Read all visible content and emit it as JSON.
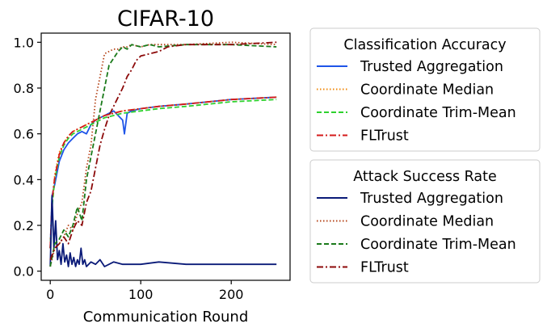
{
  "chart_data": {
    "type": "line",
    "title": "CIFAR-10",
    "xlabel": "Communication Round",
    "ylabel": "",
    "xlim": [
      -10,
      265
    ],
    "ylim": [
      -0.04,
      1.04
    ],
    "x_ticks": [
      0,
      100,
      200
    ],
    "y_ticks": [
      0.0,
      0.2,
      0.4,
      0.6,
      0.8,
      1.0
    ],
    "y_tick_labels": [
      "0.0",
      "0.2",
      "0.4",
      "0.6",
      "0.8",
      "1.0"
    ],
    "grid": false,
    "legend_placement": "outside-right",
    "legends": [
      {
        "title": "Classification Accuracy",
        "entries": [
          {
            "label": "Trusted Aggregation",
            "color": "#1f55e8",
            "dash": "solid"
          },
          {
            "label": "Coordinate Median",
            "color": "#f08a0c",
            "dash": "dotted"
          },
          {
            "label": "Coordinate Trim-Mean",
            "color": "#2ed12e",
            "dash": "dashed"
          },
          {
            "label": "FLTrust",
            "color": "#d41a1a",
            "dash": "dashdot"
          }
        ]
      },
      {
        "title": "Attack Success Rate",
        "entries": [
          {
            "label": "Trusted Aggregation",
            "color": "#0a1a78",
            "dash": "solid"
          },
          {
            "label": "Coordinate Median",
            "color": "#b5451a",
            "dash": "dotted"
          },
          {
            "label": "Coordinate Trim-Mean",
            "color": "#1a7a1a",
            "dash": "dashed"
          },
          {
            "label": "FLTrust",
            "color": "#8c0a0a",
            "dash": "dashdot"
          }
        ]
      }
    ],
    "series": [
      {
        "name": "Trusted Aggregation",
        "group": "Classification Accuracy",
        "color": "#1f55e8",
        "dash": "solid",
        "x": [
          0,
          2,
          5,
          10,
          15,
          20,
          25,
          30,
          35,
          40,
          45,
          50,
          55,
          60,
          65,
          70,
          75,
          80,
          82,
          85,
          90,
          100,
          120,
          150,
          200,
          250
        ],
        "y": [
          0.1,
          0.33,
          0.38,
          0.48,
          0.53,
          0.56,
          0.58,
          0.6,
          0.61,
          0.6,
          0.64,
          0.66,
          0.67,
          0.68,
          0.69,
          0.7,
          0.68,
          0.66,
          0.6,
          0.69,
          0.7,
          0.71,
          0.72,
          0.73,
          0.75,
          0.76
        ]
      },
      {
        "name": "Coordinate Median",
        "group": "Classification Accuracy",
        "color": "#f08a0c",
        "dash": "dotted",
        "x": [
          0,
          2,
          5,
          10,
          15,
          20,
          25,
          30,
          35,
          40,
          45,
          50,
          60,
          70,
          80,
          100,
          120,
          150,
          200,
          250
        ],
        "y": [
          0.1,
          0.3,
          0.42,
          0.52,
          0.56,
          0.59,
          0.61,
          0.62,
          0.63,
          0.64,
          0.65,
          0.66,
          0.68,
          0.69,
          0.7,
          0.71,
          0.72,
          0.73,
          0.75,
          0.76
        ]
      },
      {
        "name": "Coordinate Trim-Mean",
        "group": "Classification Accuracy",
        "color": "#2ed12e",
        "dash": "dashed",
        "x": [
          0,
          2,
          5,
          10,
          15,
          20,
          25,
          30,
          35,
          40,
          45,
          50,
          60,
          70,
          80,
          100,
          120,
          150,
          200,
          250
        ],
        "y": [
          0.1,
          0.28,
          0.4,
          0.5,
          0.55,
          0.58,
          0.6,
          0.61,
          0.62,
          0.63,
          0.64,
          0.65,
          0.67,
          0.68,
          0.69,
          0.7,
          0.71,
          0.72,
          0.74,
          0.75
        ]
      },
      {
        "name": "FLTrust",
        "group": "Classification Accuracy",
        "color": "#d41a1a",
        "dash": "dashdot",
        "x": [
          0,
          2,
          5,
          10,
          15,
          20,
          25,
          30,
          35,
          40,
          45,
          50,
          60,
          70,
          80,
          100,
          120,
          150,
          200,
          250
        ],
        "y": [
          0.1,
          0.31,
          0.41,
          0.51,
          0.56,
          0.59,
          0.61,
          0.62,
          0.63,
          0.64,
          0.65,
          0.66,
          0.68,
          0.69,
          0.7,
          0.71,
          0.72,
          0.73,
          0.75,
          0.76
        ]
      },
      {
        "name": "Trusted Aggregation",
        "group": "Attack Success Rate",
        "color": "#0a1a78",
        "dash": "solid",
        "x": [
          0,
          2,
          4,
          6,
          8,
          10,
          12,
          14,
          16,
          18,
          20,
          22,
          24,
          26,
          28,
          30,
          32,
          34,
          36,
          38,
          40,
          45,
          50,
          55,
          60,
          70,
          80,
          100,
          120,
          150,
          200,
          250
        ],
        "y": [
          0.02,
          0.33,
          0.1,
          0.22,
          0.05,
          0.09,
          0.03,
          0.12,
          0.04,
          0.07,
          0.02,
          0.08,
          0.03,
          0.06,
          0.02,
          0.05,
          0.03,
          0.1,
          0.03,
          0.05,
          0.02,
          0.04,
          0.03,
          0.05,
          0.02,
          0.04,
          0.03,
          0.03,
          0.04,
          0.03,
          0.03,
          0.03
        ]
      },
      {
        "name": "Coordinate Median",
        "group": "Attack Success Rate",
        "color": "#b5451a",
        "dash": "dotted",
        "x": [
          0,
          5,
          10,
          15,
          20,
          25,
          30,
          35,
          40,
          45,
          50,
          55,
          60,
          65,
          70,
          75,
          80,
          85,
          90,
          100,
          110,
          120,
          150,
          200,
          250
        ],
        "y": [
          0.02,
          0.1,
          0.12,
          0.15,
          0.2,
          0.18,
          0.25,
          0.3,
          0.45,
          0.55,
          0.75,
          0.85,
          0.95,
          0.96,
          0.97,
          0.97,
          0.98,
          0.98,
          0.99,
          0.98,
          0.99,
          0.99,
          0.99,
          1.0,
          0.99
        ]
      },
      {
        "name": "Coordinate Trim-Mean",
        "group": "Attack Success Rate",
        "color": "#1a7a1a",
        "dash": "dashed",
        "x": [
          0,
          5,
          10,
          15,
          20,
          25,
          30,
          35,
          40,
          45,
          50,
          55,
          60,
          65,
          70,
          75,
          80,
          85,
          90,
          100,
          110,
          120,
          150,
          200,
          250
        ],
        "y": [
          0.02,
          0.12,
          0.14,
          0.18,
          0.15,
          0.2,
          0.28,
          0.22,
          0.4,
          0.5,
          0.6,
          0.7,
          0.8,
          0.9,
          0.93,
          0.96,
          0.98,
          0.97,
          0.99,
          0.98,
          0.99,
          0.98,
          0.99,
          0.99,
          0.98
        ]
      },
      {
        "name": "FLTrust",
        "group": "Attack Success Rate",
        "color": "#8c0a0a",
        "dash": "dashdot",
        "x": [
          0,
          5,
          10,
          15,
          20,
          25,
          30,
          35,
          40,
          45,
          50,
          55,
          60,
          65,
          70,
          75,
          80,
          85,
          90,
          95,
          100,
          110,
          120,
          130,
          150,
          200,
          250
        ],
        "y": [
          0.05,
          0.1,
          0.12,
          0.15,
          0.12,
          0.18,
          0.22,
          0.2,
          0.3,
          0.35,
          0.45,
          0.55,
          0.62,
          0.68,
          0.72,
          0.76,
          0.8,
          0.85,
          0.88,
          0.92,
          0.94,
          0.95,
          0.96,
          0.98,
          0.99,
          0.99,
          1.0
        ]
      }
    ]
  }
}
